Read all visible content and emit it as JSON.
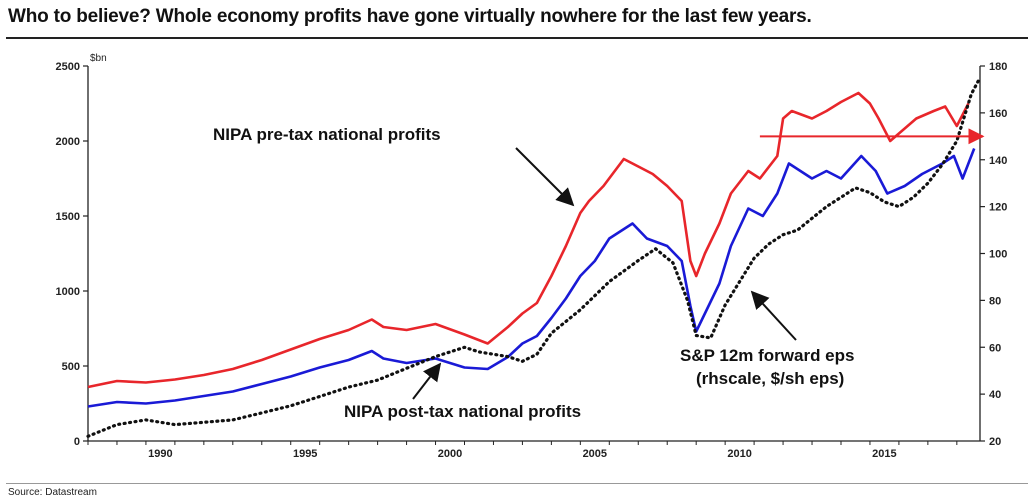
{
  "title": "Who to believe? Whole economy profits have gone virtually nowhere for the last few years.",
  "source": "Source: Datastream",
  "chart_data": {
    "type": "line",
    "title": "Who to believe? Whole economy profits have gone virtually nowhere for the last few years.",
    "y_left_unit": "$bn",
    "ylim_left": [
      0,
      2500
    ],
    "ylim_right": [
      20,
      180
    ],
    "xlim": [
      1988,
      2018.8
    ],
    "x_ticks": [
      "1990",
      "1995",
      "2000",
      "2005",
      "2010",
      "2015"
    ],
    "y_left_ticks": [
      "0",
      "500",
      "1000",
      "1500",
      "2000",
      "2500"
    ],
    "y_right_ticks": [
      "20",
      "40",
      "60",
      "80",
      "100",
      "120",
      "140",
      "160",
      "180"
    ],
    "annotations": {
      "pretax": "NIPA pre-tax national profits",
      "posttax": "NIPA post-tax national profits",
      "sp_line1": "S&P 12m forward eps",
      "sp_line2": "(rhscale, $/sh eps)"
    },
    "series": [
      {
        "axis": "left",
        "color": "#e8262b",
        "style": "solid",
        "points": [
          [
            1988,
            360
          ],
          [
            1989,
            400
          ],
          [
            1990,
            390
          ],
          [
            1991,
            410
          ],
          [
            1992,
            440
          ],
          [
            1993,
            480
          ],
          [
            1994,
            540
          ],
          [
            1995,
            610
          ],
          [
            1996,
            680
          ],
          [
            1997,
            740
          ],
          [
            1997.8,
            810
          ],
          [
            1998.2,
            760
          ],
          [
            1999,
            740
          ],
          [
            2000,
            780
          ],
          [
            2001,
            710
          ],
          [
            2001.8,
            650
          ],
          [
            2002.5,
            760
          ],
          [
            2003,
            850
          ],
          [
            2003.5,
            920
          ],
          [
            2004,
            1100
          ],
          [
            2004.5,
            1300
          ],
          [
            2005,
            1520
          ],
          [
            2005.3,
            1600
          ],
          [
            2005.8,
            1700
          ],
          [
            2006.5,
            1880
          ],
          [
            2007,
            1830
          ],
          [
            2007.5,
            1780
          ],
          [
            2008,
            1700
          ],
          [
            2008.5,
            1600
          ],
          [
            2008.8,
            1200
          ],
          [
            2009,
            1100
          ],
          [
            2009.3,
            1250
          ],
          [
            2009.8,
            1450
          ],
          [
            2010.2,
            1650
          ],
          [
            2010.8,
            1800
          ],
          [
            2011.2,
            1750
          ],
          [
            2011.8,
            1900
          ],
          [
            2012,
            2150
          ],
          [
            2012.3,
            2200
          ],
          [
            2013,
            2150
          ],
          [
            2013.5,
            2200
          ],
          [
            2014,
            2260
          ],
          [
            2014.6,
            2320
          ],
          [
            2015,
            2250
          ],
          [
            2015.3,
            2150
          ],
          [
            2015.7,
            2000
          ],
          [
            2016,
            2050
          ],
          [
            2016.6,
            2150
          ],
          [
            2017.2,
            2200
          ],
          [
            2017.6,
            2230
          ],
          [
            2018,
            2100
          ],
          [
            2018.4,
            2250
          ]
        ]
      },
      {
        "axis": "left",
        "color": "#1a1ad6",
        "style": "solid",
        "points": [
          [
            1988,
            230
          ],
          [
            1989,
            260
          ],
          [
            1990,
            250
          ],
          [
            1991,
            270
          ],
          [
            1992,
            300
          ],
          [
            1993,
            330
          ],
          [
            1994,
            380
          ],
          [
            1995,
            430
          ],
          [
            1996,
            490
          ],
          [
            1997,
            540
          ],
          [
            1997.8,
            600
          ],
          [
            1998.2,
            550
          ],
          [
            1999,
            520
          ],
          [
            2000,
            550
          ],
          [
            2001,
            490
          ],
          [
            2001.8,
            480
          ],
          [
            2002.5,
            560
          ],
          [
            2003,
            650
          ],
          [
            2003.5,
            700
          ],
          [
            2004,
            820
          ],
          [
            2004.5,
            950
          ],
          [
            2005,
            1100
          ],
          [
            2005.5,
            1200
          ],
          [
            2006,
            1350
          ],
          [
            2006.8,
            1450
          ],
          [
            2007.3,
            1350
          ],
          [
            2008,
            1300
          ],
          [
            2008.5,
            1200
          ],
          [
            2008.8,
            900
          ],
          [
            2009,
            730
          ],
          [
            2009.3,
            850
          ],
          [
            2009.8,
            1050
          ],
          [
            2010.2,
            1300
          ],
          [
            2010.8,
            1550
          ],
          [
            2011.3,
            1500
          ],
          [
            2011.8,
            1650
          ],
          [
            2012.2,
            1850
          ],
          [
            2013,
            1750
          ],
          [
            2013.5,
            1800
          ],
          [
            2014,
            1750
          ],
          [
            2014.7,
            1900
          ],
          [
            2015.2,
            1800
          ],
          [
            2015.6,
            1650
          ],
          [
            2016.2,
            1700
          ],
          [
            2016.8,
            1780
          ],
          [
            2017.5,
            1850
          ],
          [
            2017.9,
            1900
          ],
          [
            2018.2,
            1750
          ],
          [
            2018.6,
            1950
          ]
        ]
      },
      {
        "axis": "right",
        "color": "#111111",
        "style": "dotted",
        "points": [
          [
            1988,
            22
          ],
          [
            1989,
            27
          ],
          [
            1990,
            29
          ],
          [
            1991,
            27
          ],
          [
            1992,
            28
          ],
          [
            1993,
            29
          ],
          [
            1994,
            32
          ],
          [
            1995,
            35
          ],
          [
            1996,
            39
          ],
          [
            1997,
            43
          ],
          [
            1998,
            46
          ],
          [
            1999,
            51
          ],
          [
            2000,
            56
          ],
          [
            2001,
            60
          ],
          [
            2001.5,
            58
          ],
          [
            2002.5,
            56
          ],
          [
            2003,
            54
          ],
          [
            2003.5,
            57
          ],
          [
            2004,
            66
          ],
          [
            2005,
            76
          ],
          [
            2006,
            88
          ],
          [
            2007,
            97
          ],
          [
            2007.6,
            102
          ],
          [
            2008.2,
            96
          ],
          [
            2008.7,
            80
          ],
          [
            2009,
            65
          ],
          [
            2009.5,
            64
          ],
          [
            2010,
            78
          ],
          [
            2010.5,
            88
          ],
          [
            2011,
            98
          ],
          [
            2011.5,
            104
          ],
          [
            2012,
            108
          ],
          [
            2012.5,
            110
          ],
          [
            2013,
            115
          ],
          [
            2013.5,
            120
          ],
          [
            2014,
            124
          ],
          [
            2014.5,
            128
          ],
          [
            2015,
            126
          ],
          [
            2015.5,
            122
          ],
          [
            2016,
            120
          ],
          [
            2016.5,
            124
          ],
          [
            2017,
            130
          ],
          [
            2017.5,
            138
          ],
          [
            2018,
            148
          ],
          [
            2018.5,
            168
          ],
          [
            2018.8,
            175
          ]
        ]
      }
    ],
    "reference_arrow": {
      "axis": "right",
      "value": 150,
      "from_x": 2011.2,
      "to_x": 2018.9,
      "color": "#e8262b"
    }
  }
}
